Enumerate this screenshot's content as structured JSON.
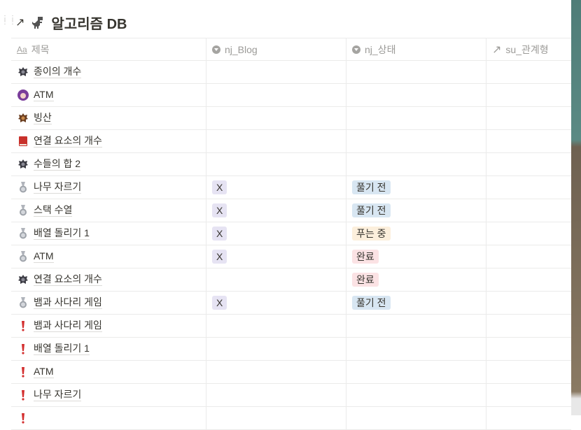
{
  "page": {
    "title": "알고리즘 DB",
    "link_icon": "arrow-up-right-icon",
    "page_icon": "dinosaur-icon"
  },
  "columns": [
    {
      "label": "제목",
      "icon": "Aa"
    },
    {
      "label": "nj_Blog",
      "icon": "select-icon"
    },
    {
      "label": "nj_상태",
      "icon": "select-icon"
    },
    {
      "label": "su_관계형",
      "icon": "relation-arrow-icon"
    }
  ],
  "colors": {
    "tag_X": "#e6e3f3",
    "tag_풀기 전": "#d8e6f2",
    "tag_푸는 중": "#fcefdc",
    "tag_완료": "#fbe2e4"
  },
  "rows": [
    {
      "icon": "dark-emblem-icon",
      "title": "종이의 개수",
      "blog": "",
      "status": ""
    },
    {
      "icon": "avatar-icon",
      "title": "ATM",
      "blog": "",
      "status": ""
    },
    {
      "icon": "bronze-emblem-icon",
      "title": "빙산",
      "blog": "",
      "status": ""
    },
    {
      "icon": "red-book-icon",
      "title": "연결 요소의 개수",
      "blog": "",
      "status": ""
    },
    {
      "icon": "dark-emblem-icon",
      "title": "수들의 합 2",
      "blog": "",
      "status": ""
    },
    {
      "icon": "silver-medal-icon",
      "title": "나무 자르기",
      "blog": "X",
      "status": "풀기 전"
    },
    {
      "icon": "silver-medal-icon",
      "title": "스택 수열",
      "blog": "X",
      "status": "풀기 전"
    },
    {
      "icon": "silver-medal-icon",
      "title": "배열 돌리기 1",
      "blog": "X",
      "status": "푸는 중"
    },
    {
      "icon": "silver-medal-icon",
      "title": "ATM",
      "blog": "X",
      "status": "완료"
    },
    {
      "icon": "dark-emblem-icon",
      "title": "연결 요소의 개수",
      "blog": "",
      "status": "완료"
    },
    {
      "icon": "silver-medal-icon",
      "title": "뱀과 사다리 게임",
      "blog": "X",
      "status": "풀기 전"
    },
    {
      "icon": "exclamation-icon",
      "title": "뱀과 사다리 게임",
      "blog": "",
      "status": ""
    },
    {
      "icon": "exclamation-icon",
      "title": "배열 돌리기 1",
      "blog": "",
      "status": ""
    },
    {
      "icon": "exclamation-icon",
      "title": "ATM",
      "blog": "",
      "status": ""
    },
    {
      "icon": "exclamation-icon",
      "title": "나무 자르기",
      "blog": "",
      "status": ""
    },
    {
      "icon": "exclamation-icon",
      "title": "",
      "blog": "",
      "status": ""
    }
  ]
}
